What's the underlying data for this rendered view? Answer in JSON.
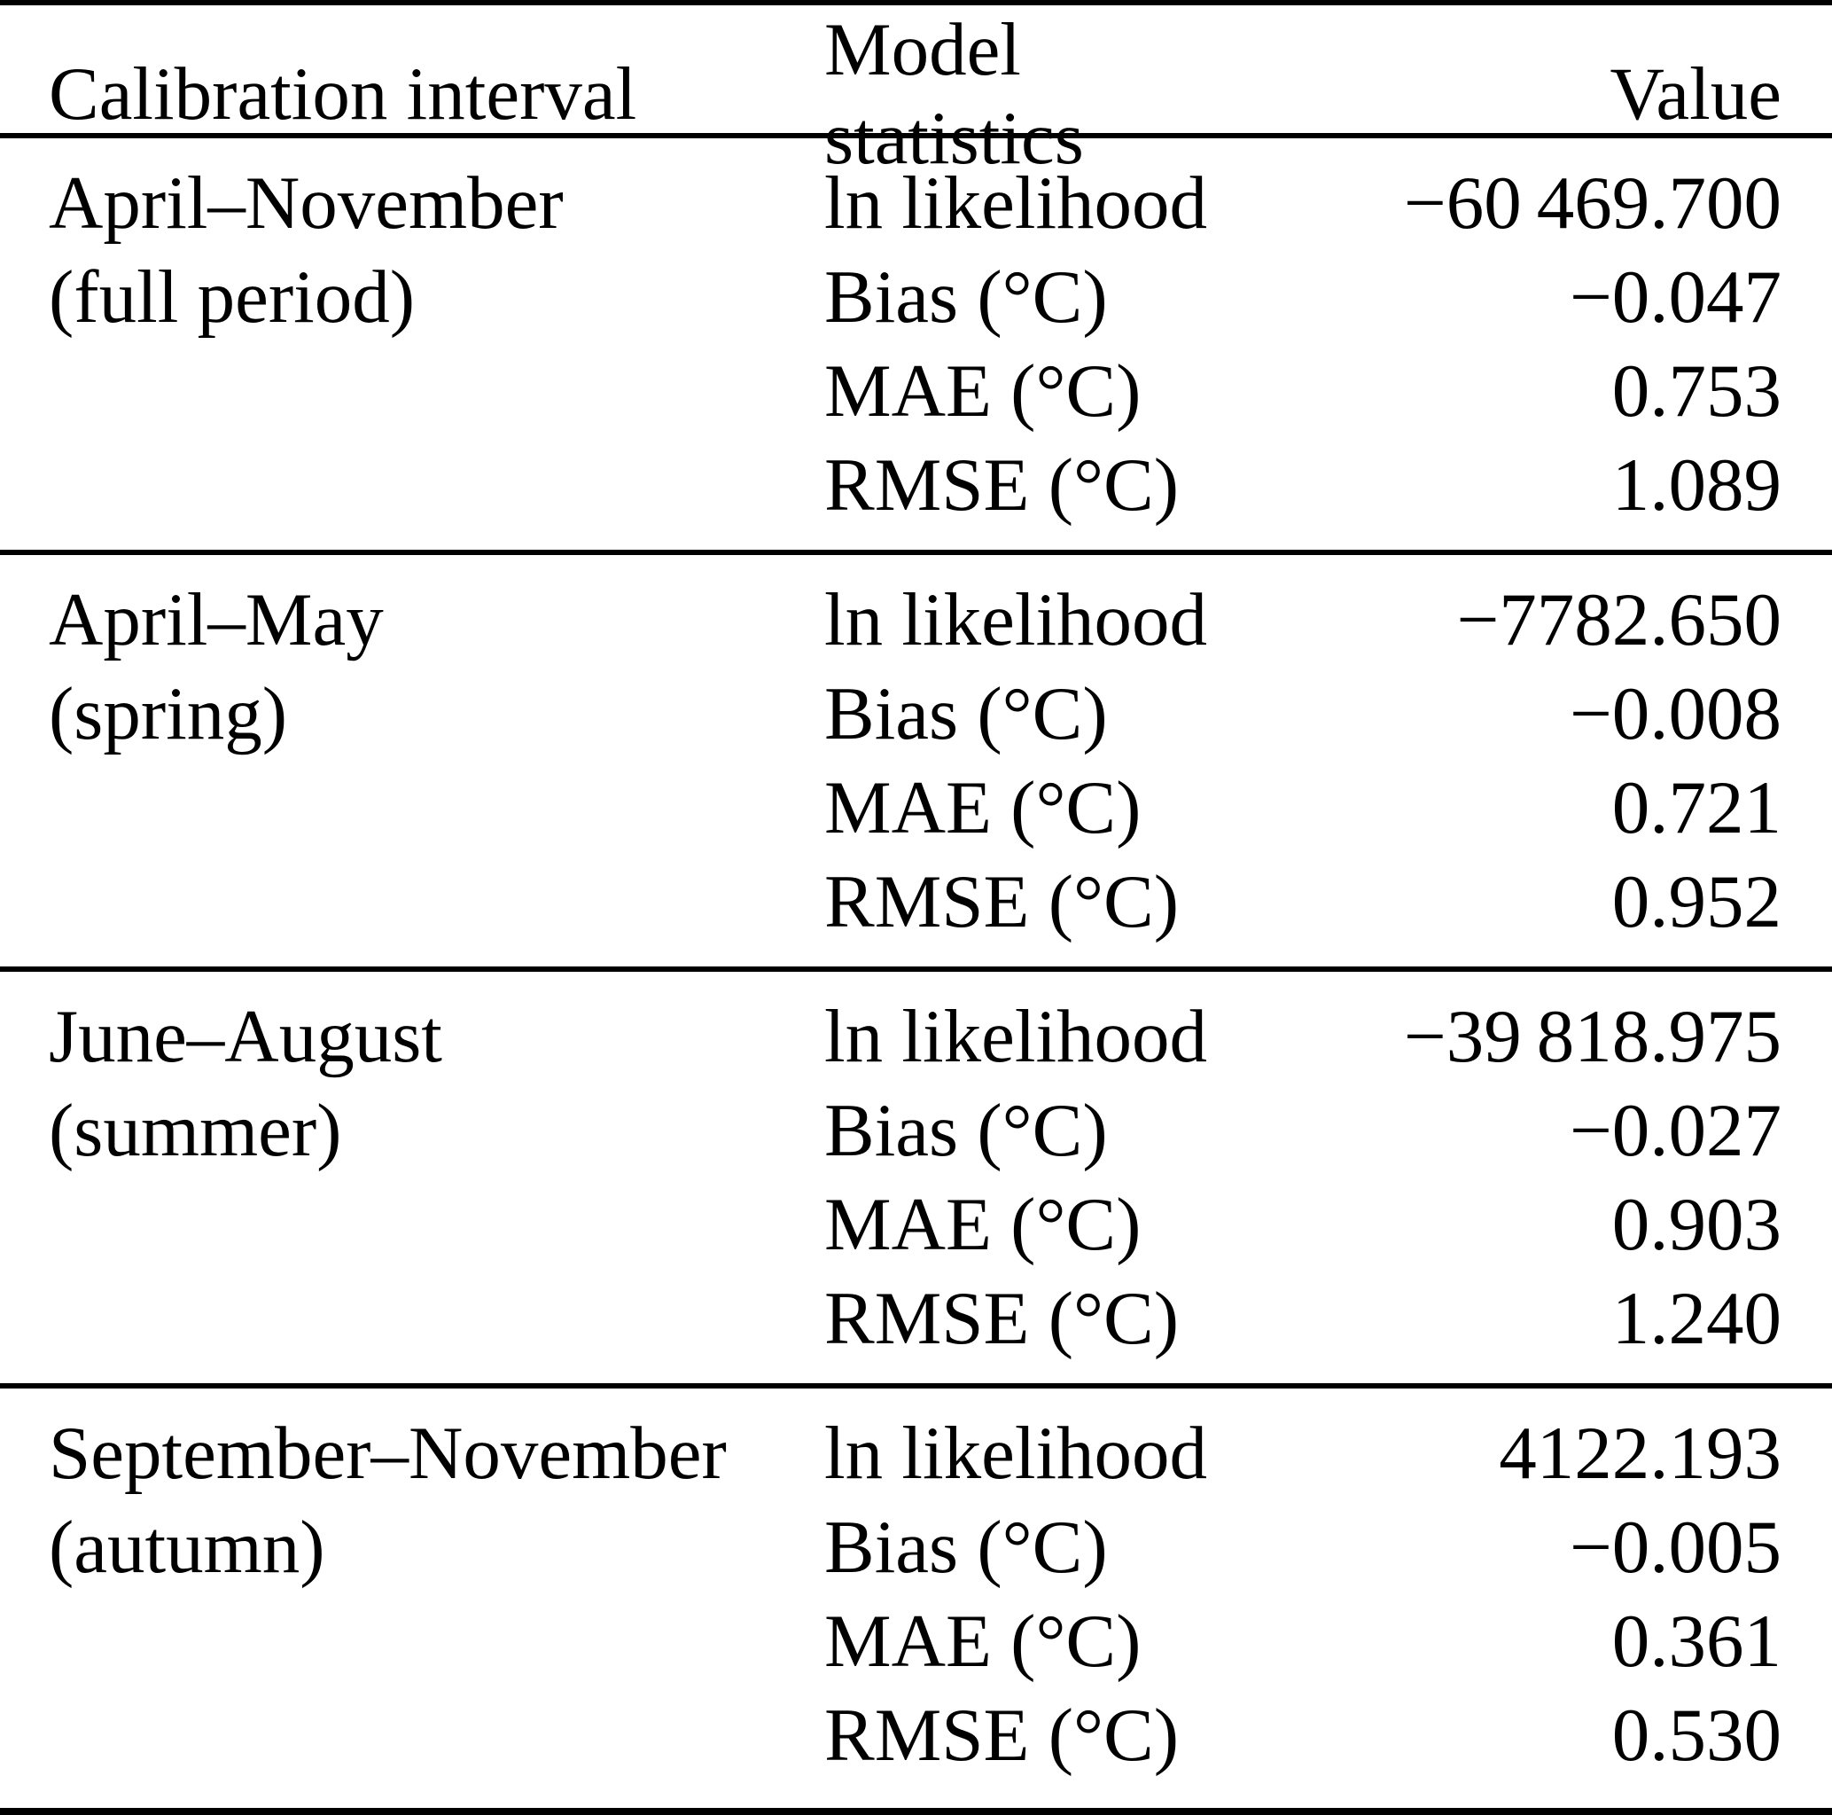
{
  "table": {
    "headers": {
      "calibration_interval": "Calibration interval",
      "model_statistics": "Model statistics",
      "value": "Value"
    },
    "rows": [
      {
        "interval": "April–November",
        "interval_note": "(full period)",
        "stats": [
          {
            "label": "ln likelihood",
            "value": "−60 469.700"
          },
          {
            "label": "Bias (°C)",
            "value": "−0.047"
          },
          {
            "label": "MAE (°C)",
            "value": "0.753"
          },
          {
            "label": "RMSE (°C)",
            "value": "1.089"
          }
        ]
      },
      {
        "interval": "April–May",
        "interval_note": "(spring)",
        "stats": [
          {
            "label": "ln likelihood",
            "value": "−7782.650"
          },
          {
            "label": "Bias (°C)",
            "value": "−0.008"
          },
          {
            "label": "MAE (°C)",
            "value": "0.721"
          },
          {
            "label": "RMSE (°C)",
            "value": "0.952"
          }
        ]
      },
      {
        "interval": "June–August",
        "interval_note": "(summer)",
        "stats": [
          {
            "label": "ln likelihood",
            "value": "−39 818.975"
          },
          {
            "label": "Bias (°C)",
            "value": "−0.027"
          },
          {
            "label": "MAE (°C)",
            "value": "0.903"
          },
          {
            "label": "RMSE (°C)",
            "value": "1.240"
          }
        ]
      },
      {
        "interval": "September–November",
        "interval_note": "(autumn)",
        "stats": [
          {
            "label": "ln likelihood",
            "value": "4122.193"
          },
          {
            "label": "Bias (°C)",
            "value": "−0.005"
          },
          {
            "label": "MAE (°C)",
            "value": "0.361"
          },
          {
            "label": "RMSE (°C)",
            "value": "0.530"
          }
        ]
      }
    ]
  }
}
